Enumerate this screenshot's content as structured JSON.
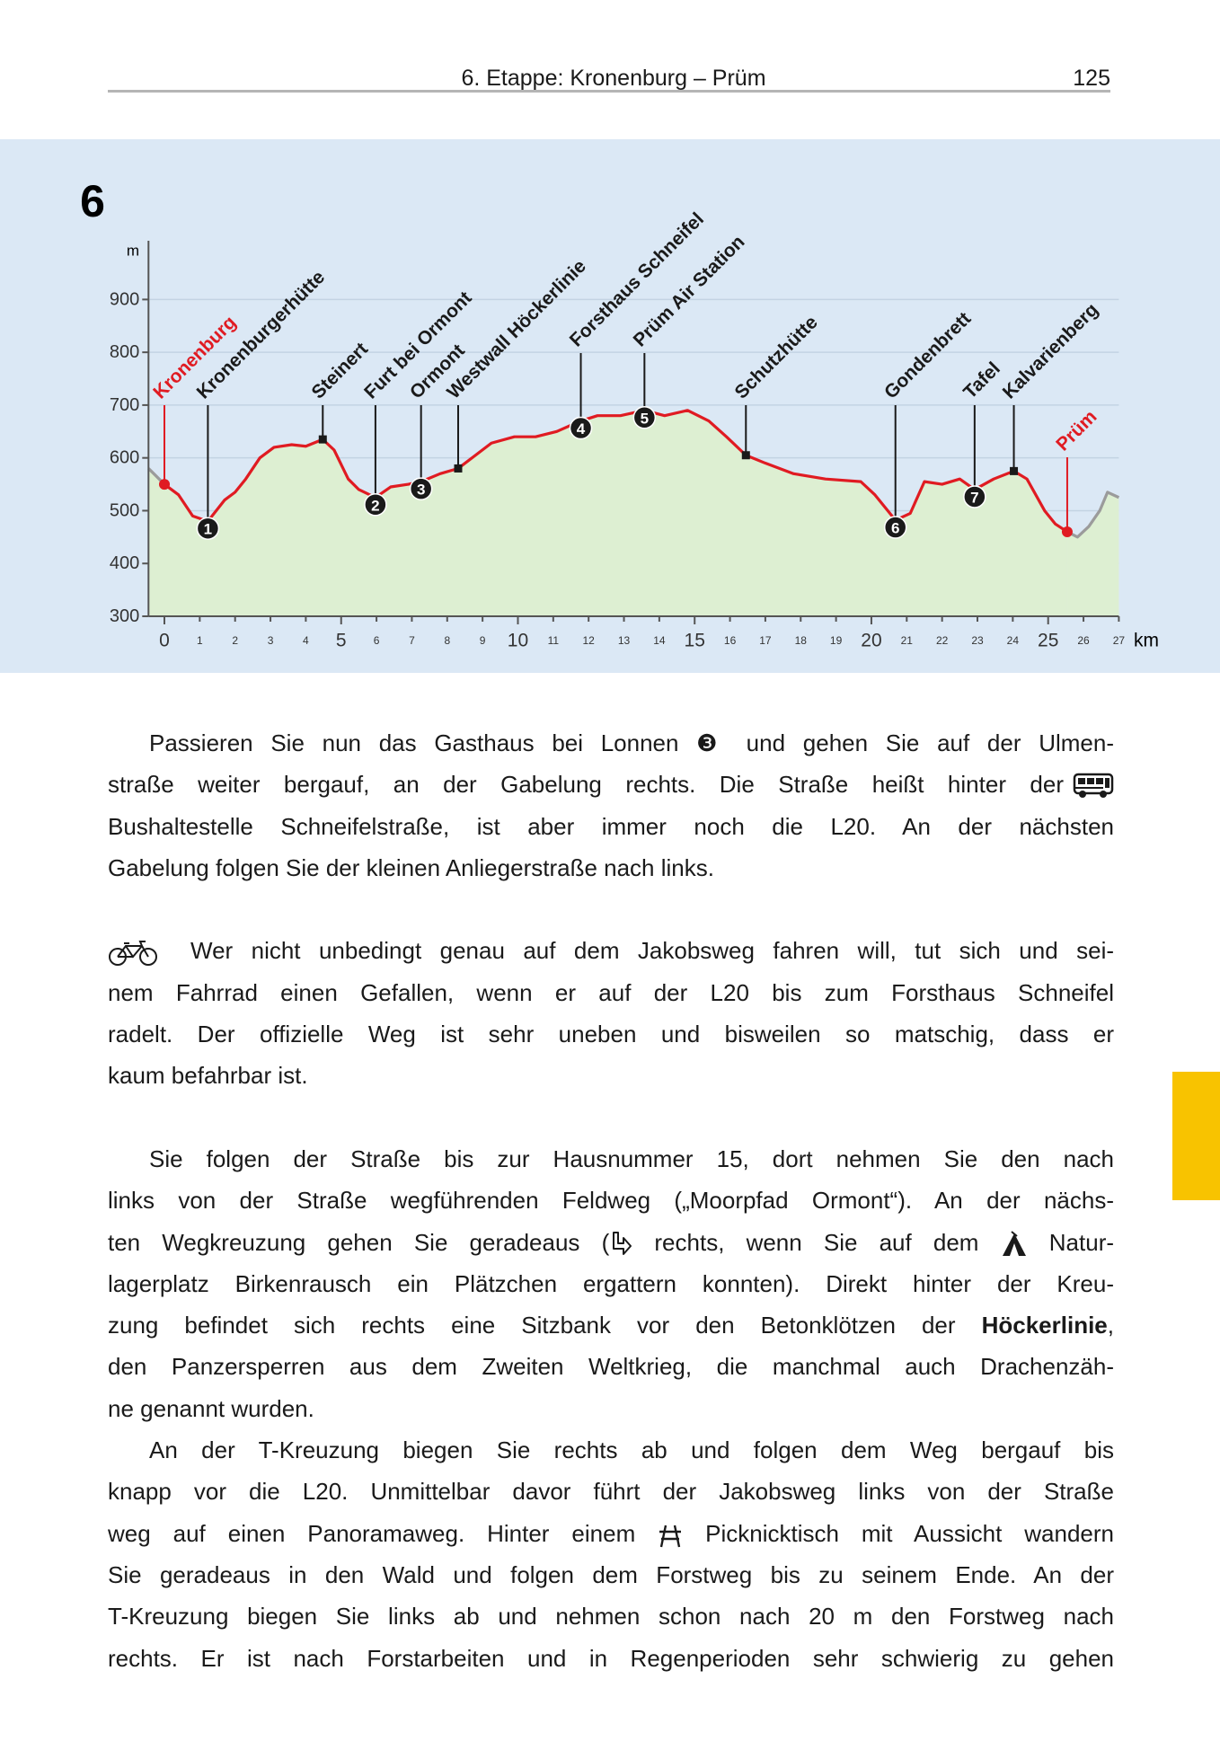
{
  "header": {
    "title": "6. Etappe: Kronenburg – Prüm",
    "page_number": "125"
  },
  "chart_data": {
    "type": "line",
    "stage_number": "6",
    "ylabel": "m",
    "xlabel": "km",
    "x": [
      -0.45,
      0,
      0.4,
      0.8,
      1.23,
      1.7,
      2.0,
      2.3,
      2.7,
      3.1,
      3.6,
      4.0,
      4.48,
      4.8,
      5.2,
      5.5,
      5.97,
      6.4,
      6.9,
      7.26,
      7.8,
      8.31,
      8.8,
      9.25,
      9.9,
      10.5,
      11.1,
      11.78,
      12.25,
      12.9,
      13.58,
      14.15,
      14.8,
      15.4,
      15.9,
      16.45,
      17.0,
      17.8,
      18.7,
      19.7,
      20.1,
      20.68,
      21.1,
      21.5,
      22.0,
      22.5,
      22.92,
      23.46,
      24.03,
      24.4,
      24.9,
      25.2,
      25.54,
      25.83,
      26.15,
      26.46,
      26.68,
      27
    ],
    "series": [
      {
        "color": "#e01b22",
        "values": [
          null,
          550,
          530,
          490,
          480,
          520,
          535,
          560,
          600,
          620,
          625,
          622,
          635,
          615,
          560,
          540,
          525,
          545,
          550,
          555,
          570,
          580,
          605,
          628,
          640,
          640,
          650,
          670,
          680,
          680,
          690,
          680,
          690,
          670,
          640,
          605,
          590,
          570,
          560,
          555,
          530,
          482,
          495,
          555,
          550,
          560,
          540,
          560,
          575,
          560,
          500,
          475,
          460,
          null,
          null,
          null,
          null,
          null
        ]
      },
      {
        "color": "#9b9b9b",
        "values": [
          580,
          550,
          null,
          null,
          null,
          null,
          null,
          null,
          null,
          null,
          null,
          null,
          null,
          null,
          null,
          null,
          null,
          null,
          null,
          null,
          null,
          null,
          null,
          null,
          null,
          null,
          null,
          null,
          null,
          null,
          null,
          null,
          null,
          null,
          null,
          null,
          null,
          null,
          null,
          null,
          null,
          null,
          null,
          null,
          null,
          null,
          null,
          null,
          null,
          null,
          null,
          null,
          460,
          450,
          470,
          500,
          535,
          525
        ]
      }
    ],
    "area_color": "#ddefd2",
    "xlim": [
      -0.45,
      27
    ],
    "ylim": [
      300,
      1000
    ],
    "xticks": [
      0,
      1,
      2,
      3,
      4,
      5,
      6,
      7,
      8,
      9,
      10,
      11,
      12,
      13,
      14,
      15,
      16,
      17,
      18,
      19,
      20,
      21,
      22,
      23,
      24,
      25,
      26,
      27
    ],
    "yticks": [
      300,
      400,
      500,
      600,
      700,
      800,
      900
    ],
    "grid": true,
    "waypoints": [
      {
        "label": "Kronenburg",
        "km": 0,
        "elevation": 550,
        "marker_shape": "dot",
        "color": "#e01b22"
      },
      {
        "label": "Kronenburgerhütte",
        "km": 1.23,
        "elevation": 480,
        "marker_shape": "circle",
        "number": "1",
        "color": "#1a1a1a"
      },
      {
        "label": "Steinert",
        "km": 4.48,
        "elevation": 635,
        "marker_shape": "square",
        "color": "#1a1a1a"
      },
      {
        "label": "Furt bei Ormont",
        "km": 5.97,
        "elevation": 525,
        "marker_shape": "circle",
        "number": "2",
        "color": "#1a1a1a"
      },
      {
        "label": "Ormont",
        "km": 7.26,
        "elevation": 555,
        "marker_shape": "circle",
        "number": "3",
        "color": "#1a1a1a"
      },
      {
        "label": "Westwall Höckerlinie",
        "km": 8.31,
        "elevation": 580,
        "marker_shape": "square",
        "color": "#1a1a1a"
      },
      {
        "label": "Forsthaus Schneifel",
        "km": 11.78,
        "elevation": 670,
        "marker_shape": "circle",
        "number": "4",
        "color": "#1a1a1a"
      },
      {
        "label": "Prüm Air Station",
        "km": 13.58,
        "elevation": 690,
        "marker_shape": "circle",
        "number": "5",
        "color": "#1a1a1a"
      },
      {
        "label": "Schutzhütte",
        "km": 16.45,
        "elevation": 605,
        "marker_shape": "square",
        "color": "#1a1a1a"
      },
      {
        "label": "Gondenbrett",
        "km": 20.68,
        "elevation": 482,
        "marker_shape": "circle",
        "number": "6",
        "color": "#1a1a1a"
      },
      {
        "label": "Tafel",
        "km": 22.92,
        "elevation": 540,
        "marker_shape": "circle",
        "number": "7",
        "color": "#1a1a1a"
      },
      {
        "label": "Kalvarienberg",
        "km": 24.03,
        "elevation": 575,
        "marker_shape": "square",
        "color": "#1a1a1a"
      },
      {
        "label": "Prüm",
        "km": 25.54,
        "elevation": 460,
        "marker_shape": "dot",
        "color": "#e01b22"
      }
    ]
  },
  "body": {
    "paragraphs": [
      {
        "lines": [
          [
            "Passieren Sie nun das Gasthaus bei Lonnen ❸ und gehen Sie auf der Ulmen-"
          ],
          [
            "straße weiter bergauf, an der Gabelung rechts. Die Straße heißt hinter der"
          ],
          [
            "Bushaltestelle Schneifelstraße, ist aber immer noch die L20. An der nächsten"
          ],
          [
            "Gabelung folgen Sie der kleinen Anliegerstraße nach links."
          ]
        ]
      },
      {
        "lines": [
          [
            "Wer nicht unbedingt genau auf dem Jakobsweg fahren will, tut sich und sei-"
          ],
          [
            "nem Fahrrad einen Gefallen, wenn er auf der L20 bis zum Forsthaus Schneifel"
          ],
          [
            "radelt. Der offizielle Weg ist sehr uneben und bisweilen so matschig, dass er"
          ],
          [
            "kaum befahrbar ist."
          ]
        ]
      },
      {
        "lines": [
          [
            "Sie folgen der Straße bis zur Hausnummer 15, dort nehmen Sie den nach"
          ],
          [
            "links von der Straße wegführenden Feldweg („Moorpfad Ormont“). An der nächs-"
          ],
          [
            "ten Wegkreuzung gehen Sie geradeaus (",
            " rechts, wenn Sie auf dem ",
            " Natur-"
          ],
          [
            "lagerplatz Birkenrausch ein Plätzchen ergattern konnten). Direkt hinter der Kreu-"
          ],
          [
            "zung befindet sich rechts eine Sitzbank vor den Betonklötzen der ",
            "Höckerlinie",
            ","
          ],
          [
            "den Panzersperren aus dem Zweiten Weltkrieg, die manchmal auch Drachenzäh-"
          ],
          [
            "ne genannt wurden."
          ]
        ]
      },
      {
        "lines": [
          [
            "An der T-Kreuzung biegen Sie rechts ab und folgen dem Weg bergauf bis"
          ],
          [
            "knapp vor die L20. Unmittelbar davor führt der Jakobsweg links von der Straße"
          ],
          [
            "weg auf einen Panoramaweg. Hinter einem ",
            " Picknicktisch mit Aussicht wandern"
          ],
          [
            "Sie geradeaus in den Wald und folgen dem Forstweg bis zu seinem Ende. An der"
          ],
          [
            "T-Kreuzung biegen Sie links ab und nehmen schon nach 20 m den Forstweg nach"
          ],
          [
            "rechts. Er ist nach Forstarbeiten und in Regenperioden sehr schwierig zu gehen"
          ]
        ]
      }
    ]
  }
}
